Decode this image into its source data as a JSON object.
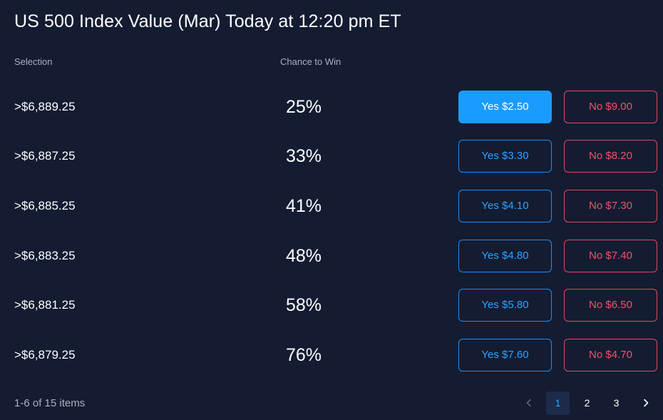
{
  "title": "US 500 Index Value (Mar) Today at 12:20 pm ET",
  "headers": {
    "selection": "Selection",
    "chance": "Chance to Win"
  },
  "rows": [
    {
      "selection": ">$6,889.25",
      "chance": "25%",
      "yes": "Yes $2.50",
      "no": "No $9.00",
      "yes_selected": true
    },
    {
      "selection": ">$6,887.25",
      "chance": "33%",
      "yes": "Yes $3.30",
      "no": "No $8.20"
    },
    {
      "selection": ">$6,885.25",
      "chance": "41%",
      "yes": "Yes $4.10",
      "no": "No $7.30"
    },
    {
      "selection": ">$6,883.25",
      "chance": "48%",
      "yes": "Yes $4.80",
      "no": "No $7.40"
    },
    {
      "selection": ">$6,881.25",
      "chance": "58%",
      "yes": "Yes $5.80",
      "no": "No $6.50"
    },
    {
      "selection": ">$6,879.25",
      "chance": "76%",
      "yes": "Yes $7.60",
      "no": "No $4.70"
    }
  ],
  "footer": {
    "count": "1-6 of 15 items",
    "pages": [
      "1",
      "2",
      "3"
    ],
    "current_page": "1"
  },
  "colors": {
    "background": "#141c32",
    "yes": "#1a9cff",
    "no": "#e0495d"
  },
  "icons": {
    "prev": "chevron-left-icon",
    "next": "chevron-right-icon"
  }
}
